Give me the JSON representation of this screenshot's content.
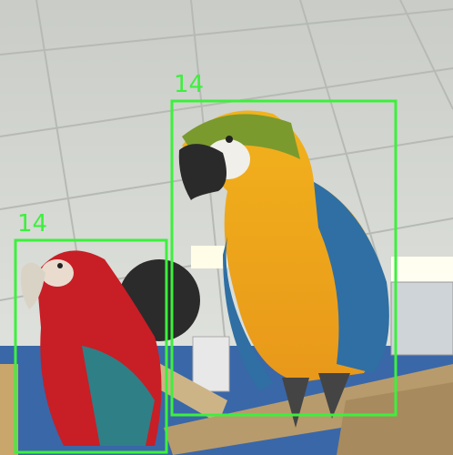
{
  "detections": [
    {
      "label": "14"
    },
    {
      "label": "14"
    }
  ]
}
